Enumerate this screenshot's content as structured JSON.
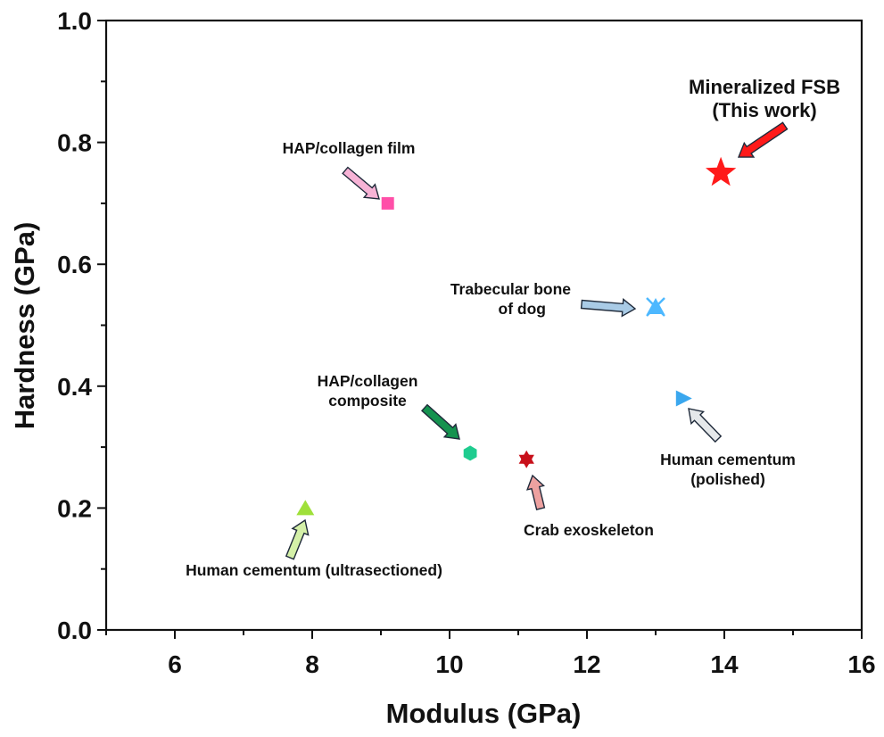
{
  "chart_data": {
    "type": "scatter",
    "title": "",
    "xlabel": "Modulus (GPa)",
    "ylabel": "Hardness (GPa)",
    "xlim": [
      5,
      16
    ],
    "ylim": [
      0.0,
      1.0
    ],
    "x_ticks": [
      "6",
      "8",
      "10",
      "12",
      "14",
      "16"
    ],
    "y_ticks": [
      "0.0",
      "0.2",
      "0.4",
      "0.6",
      "0.8",
      "1.0"
    ],
    "grid": false,
    "points": [
      {
        "label": "Mineralized FSB\n(This work)",
        "x": 13.95,
        "y": 0.75,
        "marker": "star",
        "color": "#ff1a1a",
        "arrow_color": "#ff1a1a"
      },
      {
        "label": "HAP/collagen film",
        "x": 9.1,
        "y": 0.7,
        "marker": "square",
        "color": "#ff4fa8",
        "arrow_color": "#f7b3d6"
      },
      {
        "label": "Trabecular bone\nof dog",
        "x": 13.0,
        "y": 0.53,
        "marker": "triangle-x",
        "color": "#4db8ff",
        "arrow_color": "#a9cbe6"
      },
      {
        "label": "HAP/collagen\ncomposite",
        "x": 10.3,
        "y": 0.29,
        "marker": "hexagon",
        "color": "#1fcc8f",
        "arrow_color": "#15924f"
      },
      {
        "label": "Crab exoskeleton",
        "x": 11.12,
        "y": 0.28,
        "marker": "star-of-david",
        "color": "#c8101a",
        "arrow_color": "#eda1a0"
      },
      {
        "label": "Human cementum\n(polished)",
        "x": 13.4,
        "y": 0.38,
        "marker": "triangle-right",
        "color": "#3aa7ee",
        "arrow_color": "#e5e8ea"
      },
      {
        "label": "Human cementum (ultrasectioned)",
        "x": 7.9,
        "y": 0.2,
        "marker": "triangle-up",
        "color": "#9fe03a",
        "arrow_color": "#d4f0a8"
      }
    ]
  }
}
